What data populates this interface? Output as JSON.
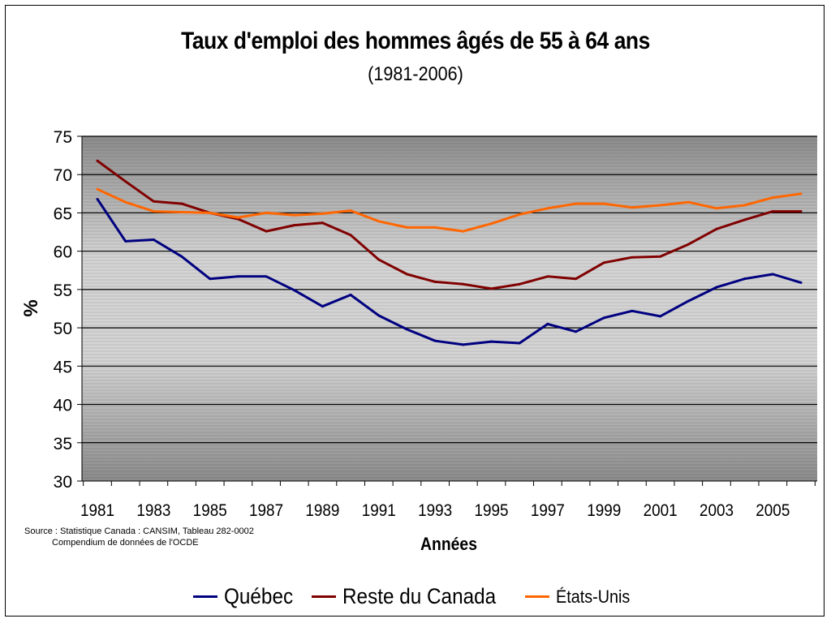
{
  "source": {
    "line1": "Source : Statistique Canada : CANSIM, Tableau 282-0002",
    "line2": "Compendium de données de l'OCDE"
  },
  "chart_data": {
    "type": "line",
    "title": "Taux d'emploi des hommes âgés de 55 à 64 ans",
    "subtitle": "(1981-2006)",
    "xlabel": "Années",
    "ylabel": "%",
    "ylim": [
      30,
      75
    ],
    "yticks": [
      30,
      35,
      40,
      45,
      50,
      55,
      60,
      65,
      70,
      75
    ],
    "x": [
      1981,
      1982,
      1983,
      1984,
      1985,
      1986,
      1987,
      1988,
      1989,
      1990,
      1991,
      1992,
      1993,
      1994,
      1995,
      1996,
      1997,
      1998,
      1999,
      2000,
      2001,
      2002,
      2003,
      2004,
      2005,
      2006
    ],
    "xtick_labels": [
      "1981",
      "1983",
      "1985",
      "1987",
      "1989",
      "1991",
      "1993",
      "1995",
      "1997",
      "1999",
      "2001",
      "2003",
      "2005"
    ],
    "grid": true,
    "legend_position": "bottom",
    "series": [
      {
        "name": "Québec",
        "color": "#000080",
        "values": [
          66.8,
          61.3,
          61.5,
          59.3,
          56.4,
          56.7,
          56.7,
          54.9,
          52.8,
          54.3,
          51.6,
          49.8,
          48.3,
          47.8,
          48.2,
          48.0,
          50.5,
          49.5,
          51.3,
          52.2,
          51.5,
          53.5,
          55.3,
          56.4,
          57.0,
          55.9
        ]
      },
      {
        "name": "Reste du Canada",
        "color": "#800000",
        "values": [
          71.8,
          69.1,
          66.5,
          66.2,
          65.0,
          64.2,
          62.6,
          63.4,
          63.7,
          62.1,
          58.9,
          57.0,
          56.0,
          55.7,
          55.1,
          55.7,
          56.7,
          56.4,
          58.5,
          59.2,
          59.3,
          60.9,
          62.9,
          64.1,
          65.2,
          65.2
        ]
      },
      {
        "name": "États-Unis",
        "color": "#FF6600",
        "values": [
          68.1,
          66.4,
          65.2,
          65.1,
          65.0,
          64.4,
          65.0,
          64.7,
          64.9,
          65.3,
          63.9,
          63.1,
          63.1,
          62.6,
          63.6,
          64.8,
          65.6,
          66.2,
          66.2,
          65.7,
          66.0,
          66.4,
          65.6,
          66.0,
          67.0,
          67.5
        ]
      }
    ]
  }
}
